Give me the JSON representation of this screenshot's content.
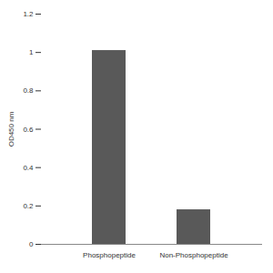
{
  "chart_data": {
    "type": "bar",
    "categories": [
      "Phosphopeptide",
      "Non-Phosphopeptide"
    ],
    "values": [
      1.01,
      0.18
    ],
    "color": "#595959",
    "y_label": "OD450 nm",
    "ylim": [
      0,
      1.2
    ],
    "yticks": [
      0,
      0.2,
      0.4,
      0.6,
      0.8,
      1,
      1.2
    ],
    "grid": false
  }
}
